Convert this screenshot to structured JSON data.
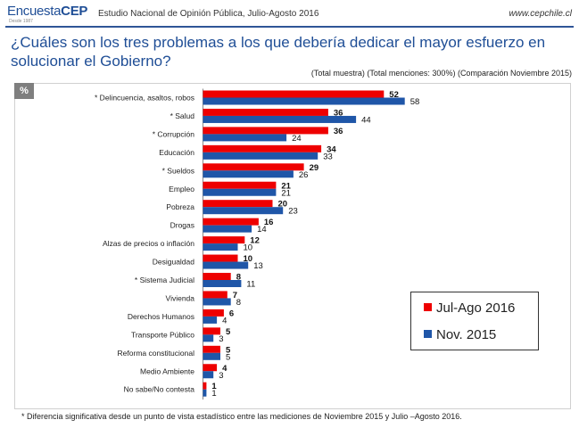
{
  "header": {
    "logo_light": "Encuesta",
    "logo_bold": "CEP",
    "logo_sub": "Desde 1987",
    "title": "Estudio Nacional de Opinión Pública, Julio-Agosto 2016",
    "url": "www.cepchile.cl"
  },
  "question": "¿Cuáles son los tres problemas a los que debería dedicar el mayor esfuerzo en solucionar el Gobierno?",
  "note": "(Total muestra) (Total menciones: 300%) (Comparación Noviembre 2015)",
  "percent_badge": "%",
  "footnote": "* Diferencia significativa desde un punto de vista estadístico entre las mediciones de Noviembre 2015 y Julio –Agosto 2016.",
  "colors": {
    "series1": "#ee0000",
    "series2": "#1f56a8"
  },
  "chart_data": {
    "type": "bar",
    "orientation": "horizontal",
    "categories": [
      "* Delincuencia, asaltos, robos",
      "* Salud",
      "* Corrupción",
      "Educación",
      "* Sueldos",
      "Empleo",
      "Pobreza",
      "Drogas",
      "Alzas de precios o inflación",
      "Desigualdad",
      "* Sistema Judicial",
      "Vivienda",
      "Derechos Humanos",
      "Transporte Público",
      "Reforma constitucional",
      "Medio Ambiente",
      "No sabe/No contesta"
    ],
    "series": [
      {
        "name": "Jul-Ago 2016",
        "values": [
          52,
          36,
          36,
          34,
          29,
          21,
          20,
          16,
          12,
          10,
          8,
          7,
          6,
          5,
          5,
          4,
          1
        ]
      },
      {
        "name": "Nov. 2015",
        "values": [
          58,
          44,
          24,
          33,
          26,
          21,
          23,
          14,
          10,
          13,
          11,
          8,
          4,
          3,
          5,
          3,
          1
        ]
      }
    ],
    "xlim": [
      0,
      60
    ],
    "legend": "bottom-right",
    "grid": false
  }
}
